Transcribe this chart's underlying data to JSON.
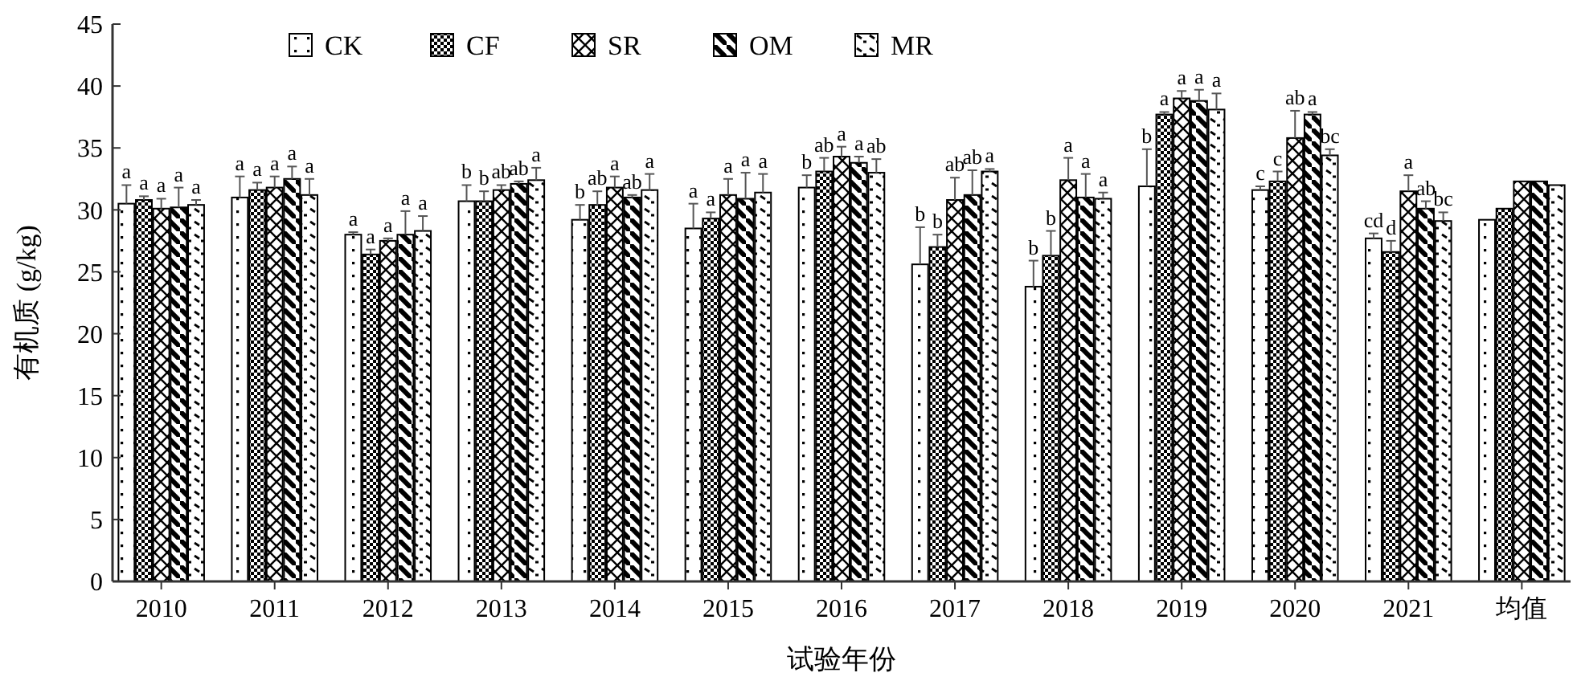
{
  "chart_data": {
    "type": "bar",
    "xlabel": "试验年份",
    "ylabel": "有机质 (g/kg)",
    "categories": [
      "2010",
      "2011",
      "2012",
      "2013",
      "2014",
      "2015",
      "2016",
      "2017",
      "2018",
      "2019",
      "2020",
      "2021",
      "均值"
    ],
    "series": [
      {
        "name": "CK",
        "color": "#000000",
        "values": [
          30.5,
          31.0,
          28.0,
          30.7,
          29.2,
          28.5,
          31.8,
          25.6,
          23.8,
          31.9,
          31.6,
          27.7,
          29.2
        ],
        "errors": [
          1.5,
          1.7,
          0.2,
          1.3,
          1.2,
          2.0,
          1.0,
          3.0,
          2.1,
          3.0,
          0.3,
          0.4,
          null
        ],
        "value_labels": [
          "a",
          "a",
          "a",
          "b",
          "b",
          "a",
          "b",
          "b",
          "b",
          "b",
          "c",
          "cd",
          null
        ]
      },
      {
        "name": "CF",
        "color": "#000000",
        "values": [
          30.8,
          31.6,
          26.4,
          30.7,
          30.4,
          29.3,
          33.1,
          27.0,
          26.3,
          37.7,
          32.3,
          26.6,
          30.1
        ],
        "errors": [
          0.3,
          0.6,
          0.4,
          0.8,
          1.1,
          0.5,
          1.1,
          1.0,
          2.0,
          0.2,
          0.8,
          0.9,
          null
        ],
        "value_labels": [
          "a",
          "a",
          "a",
          "b",
          "ab",
          "a",
          "ab",
          "b",
          "b",
          "a",
          "c",
          "d",
          null
        ]
      },
      {
        "name": "SR",
        "color": "#000000",
        "values": [
          30.1,
          31.8,
          27.5,
          31.6,
          31.8,
          31.2,
          34.3,
          30.8,
          32.4,
          39.0,
          35.8,
          31.5,
          32.3
        ],
        "errors": [
          0.8,
          0.9,
          0.2,
          0.4,
          0.9,
          1.3,
          0.8,
          1.8,
          1.8,
          0.6,
          2.2,
          1.3,
          null
        ],
        "value_labels": [
          "a",
          "a",
          "a",
          "ab",
          "a",
          "a",
          "a",
          "ab",
          "a",
          "a",
          "ab",
          "a",
          null
        ]
      },
      {
        "name": "OM",
        "color": "#000000",
        "values": [
          30.2,
          32.5,
          28.0,
          32.1,
          31.0,
          30.9,
          33.8,
          31.2,
          31.0,
          38.8,
          37.7,
          30.1,
          32.3
        ],
        "errors": [
          1.6,
          1.0,
          1.9,
          0.2,
          0.2,
          2.1,
          0.5,
          2.0,
          1.9,
          0.9,
          0.2,
          0.6,
          null
        ],
        "value_labels": [
          "a",
          "a",
          "a",
          "ab",
          "ab",
          "a",
          "a",
          "ab",
          "a",
          "a",
          "a",
          "ab",
          null
        ]
      },
      {
        "name": "MR",
        "color": "#000000",
        "values": [
          30.4,
          31.2,
          28.3,
          32.4,
          31.6,
          31.4,
          33.0,
          33.1,
          30.9,
          38.1,
          34.4,
          29.1,
          32.0
        ],
        "errors": [
          0.4,
          1.3,
          1.2,
          1.0,
          1.3,
          1.5,
          1.1,
          0.2,
          0.5,
          1.3,
          0.5,
          0.7,
          null
        ],
        "value_labels": [
          "a",
          "a",
          "a",
          "a",
          "a",
          "a",
          "ab",
          "a",
          "a",
          "a",
          "bc",
          "bc",
          null
        ]
      }
    ],
    "ylim": [
      0,
      45
    ],
    "yticks": [
      0,
      5,
      10,
      15,
      20,
      25,
      30,
      35,
      40,
      45
    ],
    "legend": "top left"
  }
}
